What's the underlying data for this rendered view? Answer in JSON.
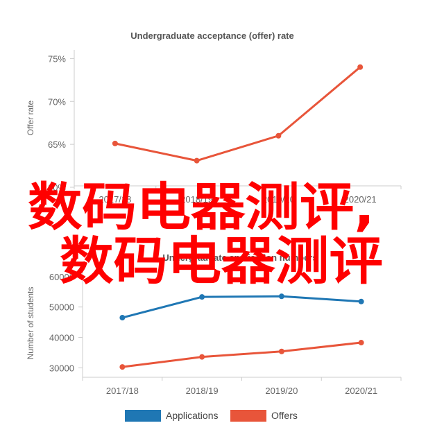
{
  "chart_data": [
    {
      "type": "line",
      "title": "Undergraduate acceptance (offer) rate",
      "ylabel": "Offer rate",
      "categories": [
        "2017/18",
        "2018/19",
        "2019/20",
        "2020/21"
      ],
      "y_ticks": [
        "60%",
        "65%",
        "70%",
        "75%"
      ],
      "ylim": [
        60,
        76
      ],
      "y_unit": "%",
      "grid": false,
      "series": [
        {
          "values": [
            65.1,
            63.1,
            66.0,
            74.0
          ],
          "color": "#e8553a"
        }
      ]
    },
    {
      "type": "line",
      "title": "Undergraduate application numbers",
      "ylabel": "Number of students",
      "categories": [
        "2017/18",
        "2018/19",
        "2019/20",
        "2020/21"
      ],
      "y_ticks": [
        "30000",
        "40000",
        "50000",
        "60000"
      ],
      "ylim": [
        26000,
        62000
      ],
      "grid": false,
      "legend_position": "bottom",
      "series": [
        {
          "name": "Applications",
          "values": [
            46500,
            53300,
            53500,
            51800
          ],
          "color": "#1f77b4"
        },
        {
          "name": "Offers",
          "values": [
            30300,
            33600,
            35400,
            38300
          ],
          "color": "#e8553a"
        }
      ]
    }
  ],
  "overlay": {
    "line1": "数码电器测评,",
    "line2": "数码电器测评",
    "color": "#ff0000"
  }
}
